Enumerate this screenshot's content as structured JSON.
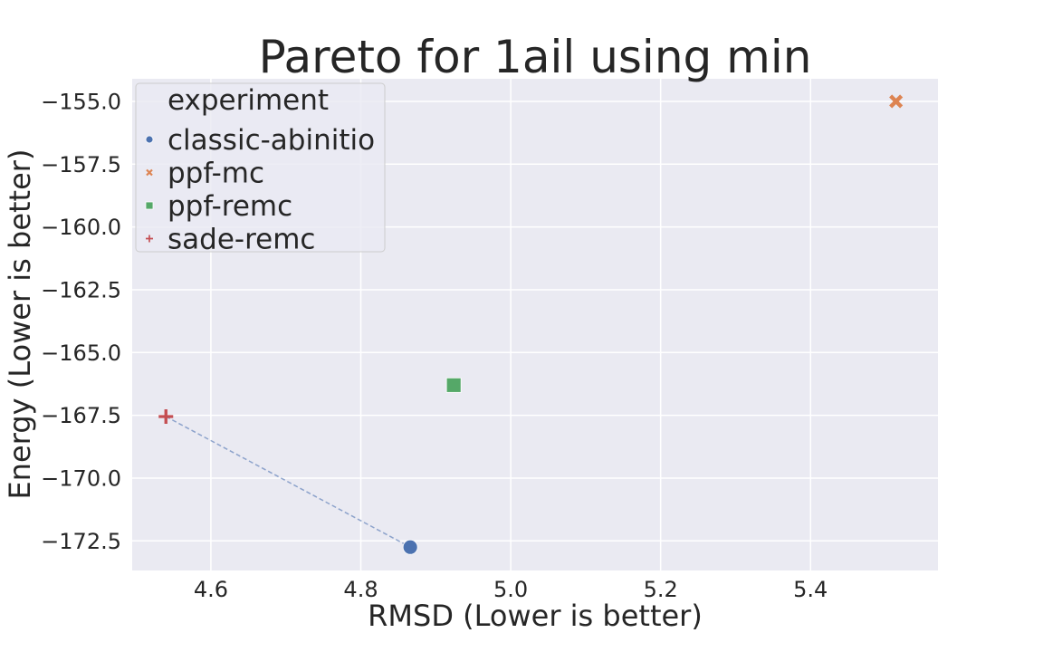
{
  "chart_data": {
    "type": "scatter",
    "title": "Pareto for 1ail using min",
    "xlabel": "RMSD (Lower is better)",
    "ylabel": "Energy (Lower is better)",
    "xlim": [
      4.495,
      5.57
    ],
    "ylim": [
      -173.68,
      -154.1
    ],
    "xticks": [
      4.6,
      4.8,
      5.0,
      5.2,
      5.4
    ],
    "xtick_labels": [
      "4.6",
      "4.8",
      "5.0",
      "5.2",
      "5.4"
    ],
    "yticks": [
      -155.0,
      -157.5,
      -160.0,
      -162.5,
      -165.0,
      -167.5,
      -170.0,
      -172.5
    ],
    "ytick_labels": [
      "−155.0",
      "−157.5",
      "−160.0",
      "−162.5",
      "−165.0",
      "−167.5",
      "−170.0",
      "−172.5"
    ],
    "grid": true,
    "legend": {
      "title": "experiment",
      "placement": "top-left"
    },
    "series": [
      {
        "name": "classic-abinitio",
        "marker": "circle",
        "color": "#4c72b0",
        "points": [
          {
            "x": 4.866,
            "y": -172.75
          }
        ]
      },
      {
        "name": "ppf-mc",
        "marker": "x",
        "color": "#dd8452",
        "points": [
          {
            "x": 5.514,
            "y": -155.0
          }
        ]
      },
      {
        "name": "ppf-remc",
        "marker": "square",
        "color": "#55a868",
        "points": [
          {
            "x": 4.924,
            "y": -166.3
          }
        ]
      },
      {
        "name": "sade-remc",
        "marker": "plus",
        "color": "#c44e52",
        "points": [
          {
            "x": 4.54,
            "y": -167.55
          }
        ]
      }
    ],
    "pareto_front": {
      "style": "dashed",
      "color": "#4c72b0",
      "points": [
        {
          "x": 4.54,
          "y": -167.55
        },
        {
          "x": 4.866,
          "y": -172.75
        }
      ]
    }
  }
}
